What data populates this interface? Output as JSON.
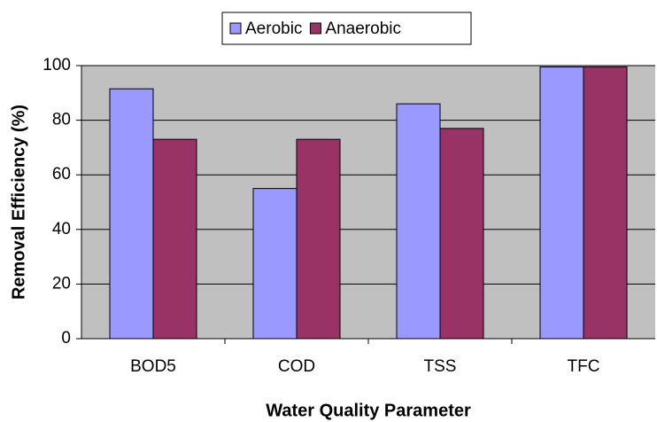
{
  "chart_data": {
    "type": "bar",
    "xlabel": "Water Quality Parameter",
    "ylabel": "Removal Efficiency (%)",
    "categories": [
      "BOD5",
      "COD",
      "TSS",
      "TFC"
    ],
    "series": [
      {
        "name": "Aerobic",
        "color": "#9999ff",
        "values": [
          91.5,
          55,
          86,
          99.5
        ]
      },
      {
        "name": "Anaerobic",
        "color": "#993366",
        "values": [
          73,
          73,
          77,
          99.5
        ]
      }
    ],
    "ylim": [
      0,
      100
    ],
    "yticks": [
      0,
      20,
      40,
      60,
      80,
      100
    ],
    "grid": true,
    "legend": "top"
  }
}
